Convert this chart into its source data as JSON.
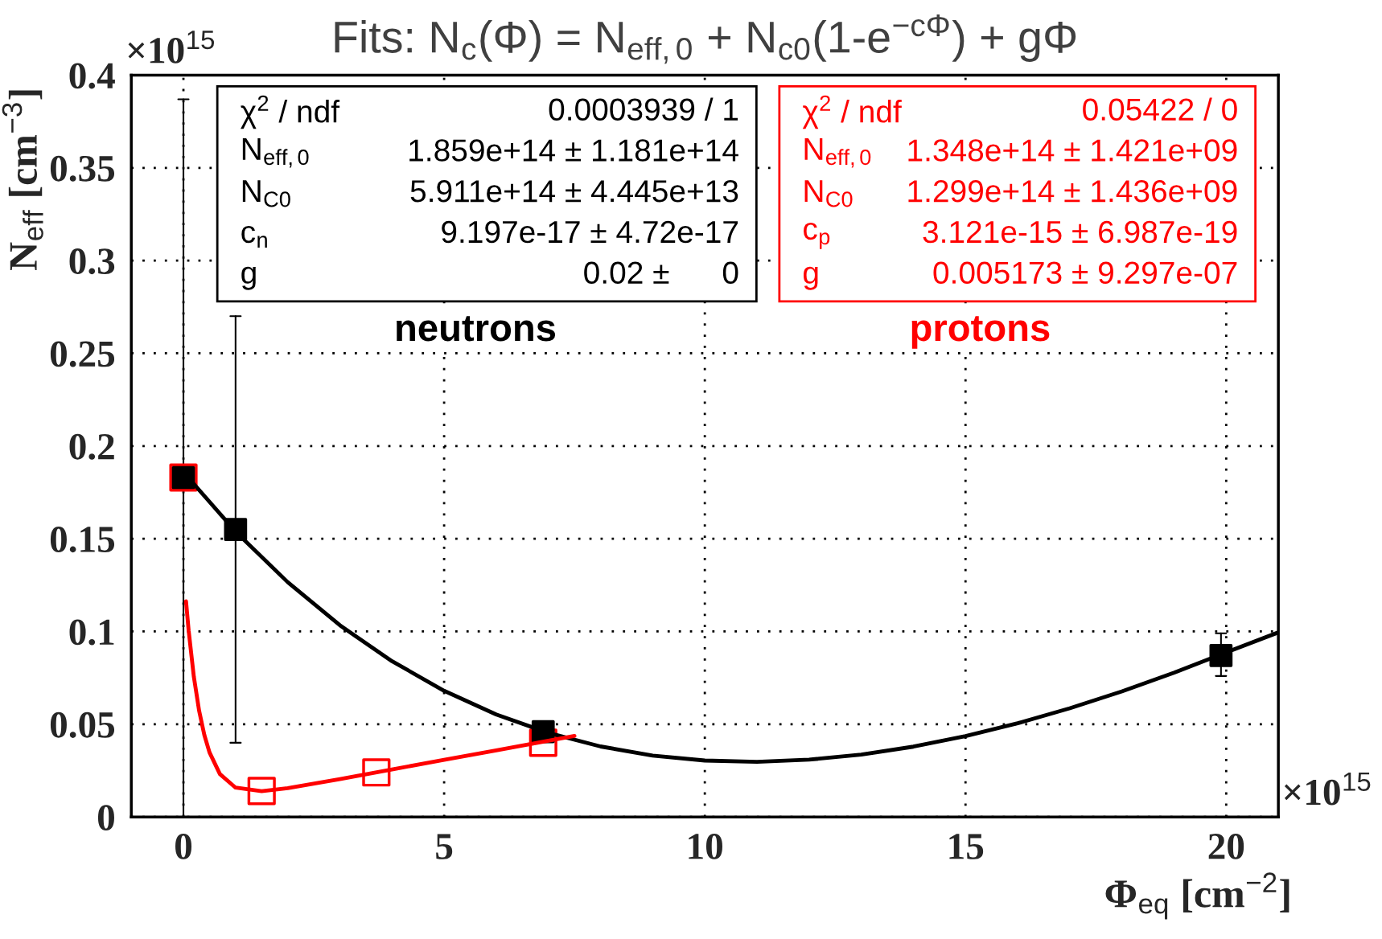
{
  "chart_data": {
    "type": "scatter",
    "title": "Fits: N$_{c}$(Φ) = N$_{eff,0}$ + N$_{c0}$(1-e$^{−cΦ}$) + gΦ",
    "xlabel": "Φ$_{eq}$ [cm$^{−2}$]",
    "ylabel": "N$_{eff}$ [cm$^{−3}$]",
    "xlim": [
      -1,
      21
    ],
    "ylim": [
      0,
      0.4
    ],
    "xticks": [
      0,
      5,
      10,
      15,
      20
    ],
    "yticks": [
      0,
      0.05,
      0.1,
      0.15,
      0.2,
      0.25,
      0.3,
      0.35,
      0.4
    ],
    "grid": true,
    "series": [
      {
        "name": "protons",
        "marker": "square",
        "color": "#ff0000",
        "x": [
          0,
          1.5,
          3.7,
          6.9
        ],
        "values": [
          0.183,
          0.014,
          0.024,
          0.04
        ]
      },
      {
        "name": "neutrons",
        "marker": "square",
        "color": "#000000",
        "x": [
          0,
          1,
          6.9,
          19.9
        ],
        "values": [
          0.183,
          0.155,
          0.046,
          0.087
        ],
        "errors": [
          [
            0,
            0.387
          ],
          [
            0.04,
            0.27
          ],
          null,
          [
            0.076,
            0.099
          ]
        ]
      },
      {
        "type": "line",
        "color": "#000000",
        "x": [
          0,
          1,
          2,
          3,
          4,
          5,
          6,
          7,
          8,
          9,
          10,
          11,
          12,
          13,
          14,
          15,
          16,
          17,
          18,
          19,
          20,
          21
        ],
        "values": [
          0.1859,
          0.1539,
          0.1266,
          0.1034,
          0.084,
          0.068,
          0.0552,
          0.0453,
          0.038,
          0.0331,
          0.0304,
          0.0297,
          0.0309,
          0.0336,
          0.0379,
          0.0436,
          0.0505,
          0.0586,
          0.0677,
          0.0778,
          0.0887,
          0.0995
        ]
      },
      {
        "type": "line",
        "color": "#ff0000",
        "x": [
          0.05,
          0.1,
          0.2,
          0.3,
          0.4,
          0.5,
          0.7,
          1.0,
          1.5,
          2,
          3,
          4,
          5,
          6,
          7,
          7.5
        ],
        "values": [
          0.1163,
          0.1005,
          0.0755,
          0.0574,
          0.0443,
          0.0348,
          0.0231,
          0.0158,
          0.0139,
          0.0155,
          0.0204,
          0.0256,
          0.0308,
          0.0359,
          0.0411,
          0.0437
        ]
      }
    ],
    "annotations": [
      "χ$^{2}$ / ndf\t0.0003939 / 1\nN$_{eff,0}$\t1.859e+14 ± 1.181e+14\nN$_{C0}$\t5.911e+14 ± 4.445e+13\nc$_{n}$\t9.197e-17 ± 4.72e-17\ng\t0.02 ±      0",
      "χ$^{2}$ / ndf\t0.05422 / 0\nN$_{eff,0}$\t1.348e+14 ± 1.421e+09\nN$_{C0}$\t1.299e+14 ± 1.436e+09\nc$_{p}$\t3.121e-15 ± 6.987e-19\ng\t0.005173 ± 9.297e-07",
      "×10$^{15}$",
      "×10$^{15}$"
    ]
  }
}
